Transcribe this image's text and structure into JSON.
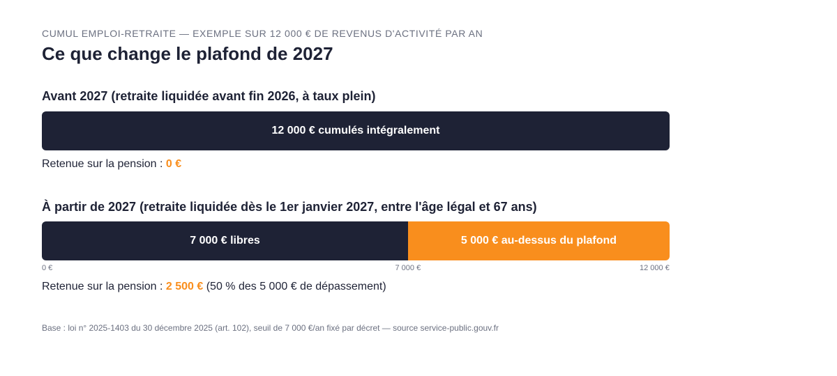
{
  "header": {
    "eyebrow": "CUMUL EMPLOI-RETRAITE — EXEMPLE SUR 12 000 € DE REVENUS D'ACTIVITÉ PAR AN",
    "title": "Ce que change le plafond de 2027"
  },
  "before": {
    "title": "Avant 2027 (retraite liquidée avant fin 2026, à taux plein)",
    "retenue_label": "Retenue sur la pension : ",
    "retenue_value": "0 €"
  },
  "after": {
    "title": "À partir de 2027 (retraite liquidée dès le 1er janvier 2027, entre l'âge légal et 67 ans)",
    "retenue_label": "Retenue sur la pension : ",
    "retenue_value": "2 500 €",
    "retenue_note": " (50 % des 5 000 € de dépassement)"
  },
  "footnote": "Base : loi n° 2025-1403 du 30 décembre 2025 (art. 102), seuil de 7 000 €/an fixé par décret — source service-public.gouv.fr",
  "colors": {
    "navy": "#1e2235",
    "orange": "#f98e1d",
    "muted": "#6b7080"
  },
  "chart_data": {
    "type": "bar",
    "orientation": "horizontal",
    "stacked": true,
    "xlim": [
      0,
      12000
    ],
    "unit": "€",
    "bars": [
      {
        "segments": [
          {
            "value": 12000,
            "label": "12 000 € cumulés intégralement",
            "color": "#1e2235"
          }
        ]
      },
      {
        "segments": [
          {
            "value": 7000,
            "label": "7 000 € libres",
            "color": "#1e2235"
          },
          {
            "value": 5000,
            "label": "5 000 € au-dessus du plafond",
            "color": "#f98e1d"
          }
        ]
      }
    ],
    "ticks": [
      {
        "value": 0,
        "label": "0 €"
      },
      {
        "value": 7000,
        "label": "7 000 €"
      },
      {
        "value": 12000,
        "label": "12 000 €"
      }
    ]
  }
}
